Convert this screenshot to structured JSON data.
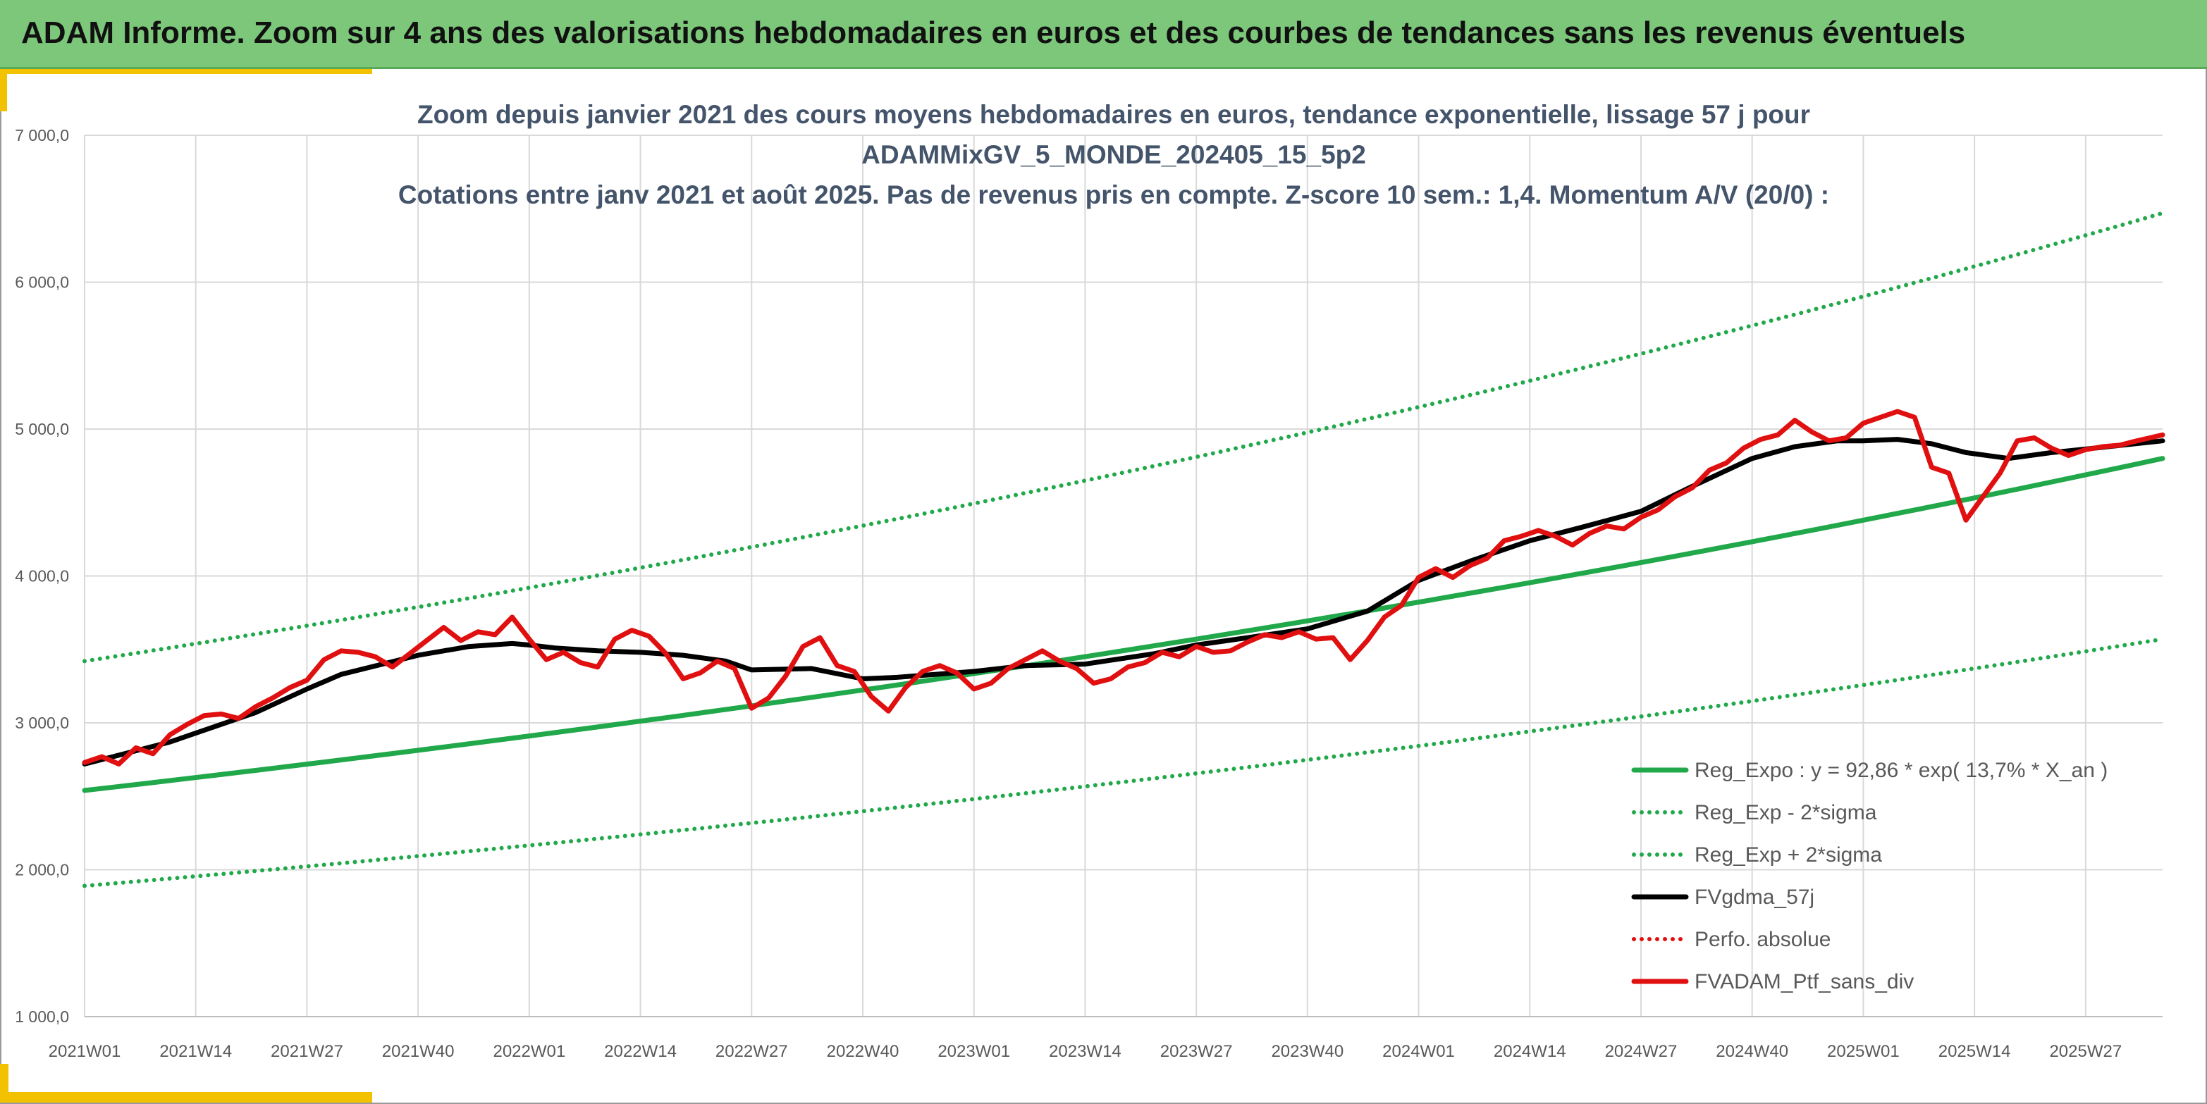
{
  "banner": {
    "title": "ADAM Informe. Zoom sur 4 ans des valorisations hebdomadaires en euros et des courbes de tendances sans les revenus éventuels"
  },
  "colors": {
    "banner": "#7cc77a",
    "accent": "#f2c200",
    "trend": "#20a84a",
    "smooth": "#000000",
    "portfolio": "#e01010",
    "absolute": "#e01010"
  },
  "chart_data": {
    "type": "line",
    "title_lines": [
      "Zoom depuis janvier 2021 des cours moyens hebdomadaires en euros, tendance exponentielle, lissage 57 j pour",
      "ADAMMixGV_5_MONDE_202405_15_5p2",
      "Cotations entre janv 2021 et août 2025. Pas de revenus pris en compte. Z-score 10 sem.: 1,4. Momentum A/V (20/0) :"
    ],
    "ylim": [
      1000,
      7000
    ],
    "yticks": [
      1000,
      2000,
      3000,
      4000,
      5000,
      6000,
      7000
    ],
    "ytick_labels": [
      "1 000,0",
      "2 000,0",
      "3 000,0",
      "4 000,0",
      "5 000,0",
      "6 000,0",
      "7 000,0"
    ],
    "x_tick_labels": [
      "2021W01",
      "2021W14",
      "2021W27",
      "2021W40",
      "2022W01",
      "2022W14",
      "2022W27",
      "2022W40",
      "2023W01",
      "2023W14",
      "2023W27",
      "2023W40",
      "2024W01",
      "2024W14",
      "2024W27",
      "2024W40",
      "2025W01",
      "2025W14",
      "2025W27"
    ],
    "x_tick_index": [
      0,
      13,
      26,
      39,
      52,
      65,
      78,
      91,
      104,
      117,
      130,
      143,
      156,
      169,
      182,
      195,
      208,
      221,
      234
    ],
    "x_range": [
      0,
      243
    ],
    "grid": true,
    "legend_position": "bottom-right",
    "series": [
      {
        "name": "Reg_Expo : y = 92,86 * exp( 13,7% *  X_an )",
        "style": "solid",
        "color": "#20a84a",
        "x": [
          0,
          243
        ],
        "y_start": 2540,
        "y_end": 4800,
        "curve": "exponential"
      },
      {
        "name": "Reg_Exp - 2*sigma",
        "style": "dotted",
        "color": "#20a84a",
        "x": [
          0,
          243
        ],
        "y_start": 1890,
        "y_end": 3570,
        "curve": "exponential"
      },
      {
        "name": "Reg_Exp + 2*sigma",
        "style": "dotted",
        "color": "#20a84a",
        "x": [
          0,
          243
        ],
        "y_start": 3420,
        "y_end": 6470,
        "curve": "exponential"
      },
      {
        "name": "FVgdma_57j",
        "style": "solid",
        "color": "#000000",
        "x": [
          0,
          10,
          20,
          26,
          30,
          39,
          45,
          50,
          52,
          55,
          60,
          65,
          70,
          75,
          78,
          85,
          91,
          95,
          104,
          110,
          117,
          125,
          130,
          136,
          143,
          150,
          156,
          162,
          169,
          175,
          182,
          188,
          195,
          200,
          205,
          208,
          212,
          216,
          220,
          225,
          230,
          235,
          243
        ],
        "y": [
          2720,
          2870,
          3070,
          3230,
          3330,
          3460,
          3520,
          3540,
          3530,
          3510,
          3490,
          3480,
          3460,
          3420,
          3360,
          3370,
          3300,
          3310,
          3350,
          3390,
          3400,
          3470,
          3530,
          3580,
          3640,
          3760,
          3970,
          4100,
          4240,
          4330,
          4440,
          4610,
          4800,
          4880,
          4920,
          4920,
          4930,
          4900,
          4840,
          4800,
          4840,
          4870,
          4920
        ]
      },
      {
        "name": "Perfo. absolue",
        "style": "dotted",
        "color": "#e01010",
        "x": [],
        "y": []
      },
      {
        "name": "FVADAM_Ptf_sans_div",
        "style": "solid",
        "color": "#e01010",
        "x": [
          0,
          2,
          4,
          6,
          8,
          10,
          12,
          14,
          16,
          18,
          20,
          22,
          24,
          26,
          28,
          30,
          32,
          34,
          36,
          38,
          40,
          42,
          44,
          46,
          48,
          50,
          52,
          54,
          56,
          58,
          60,
          62,
          64,
          66,
          68,
          70,
          72,
          74,
          76,
          78,
          80,
          82,
          84,
          86,
          88,
          90,
          92,
          94,
          96,
          98,
          100,
          102,
          104,
          106,
          108,
          110,
          112,
          114,
          116,
          118,
          120,
          122,
          124,
          126,
          128,
          130,
          132,
          134,
          136,
          138,
          140,
          142,
          144,
          146,
          148,
          150,
          152,
          154,
          156,
          158,
          160,
          162,
          164,
          166,
          168,
          170,
          172,
          174,
          176,
          178,
          180,
          182,
          184,
          186,
          188,
          190,
          192,
          194,
          196,
          198,
          200,
          202,
          204,
          206,
          208,
          210,
          212,
          214,
          216,
          218,
          220,
          222,
          224,
          226,
          228,
          230,
          232,
          234,
          236,
          238,
          240,
          243
        ],
        "y": [
          2730,
          2770,
          2720,
          2830,
          2790,
          2920,
          2990,
          3050,
          3060,
          3030,
          3110,
          3170,
          3240,
          3290,
          3430,
          3490,
          3480,
          3450,
          3380,
          3470,
          3560,
          3650,
          3560,
          3620,
          3600,
          3720,
          3570,
          3430,
          3480,
          3410,
          3380,
          3570,
          3630,
          3590,
          3470,
          3300,
          3340,
          3420,
          3370,
          3100,
          3170,
          3320,
          3520,
          3580,
          3390,
          3350,
          3180,
          3080,
          3240,
          3350,
          3390,
          3340,
          3230,
          3270,
          3370,
          3430,
          3490,
          3420,
          3370,
          3270,
          3300,
          3380,
          3410,
          3480,
          3450,
          3520,
          3480,
          3490,
          3550,
          3600,
          3580,
          3620,
          3570,
          3580,
          3430,
          3560,
          3720,
          3800,
          3990,
          4050,
          3990,
          4070,
          4120,
          4240,
          4270,
          4310,
          4270,
          4210,
          4290,
          4340,
          4320,
          4400,
          4450,
          4540,
          4600,
          4720,
          4770,
          4870,
          4930,
          4960,
          5060,
          4980,
          4920,
          4940,
          5040,
          5080,
          5120,
          5080,
          4740,
          4700,
          4380,
          4540,
          4700,
          4920,
          4940,
          4870,
          4820,
          4860,
          4880,
          4890,
          4920,
          4960
        ]
      }
    ]
  }
}
